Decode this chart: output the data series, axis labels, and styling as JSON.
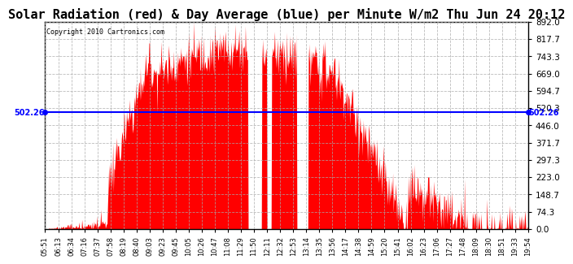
{
  "title": "Solar Radiation (red) & Day Average (blue) per Minute W/m2 Thu Jun 24 20:12",
  "copyright": "Copyright 2010 Cartronics.com",
  "avg_value": 502.26,
  "y_max": 892.0,
  "y_min": 0.0,
  "y_ticks": [
    0.0,
    74.3,
    148.7,
    223.0,
    297.3,
    371.7,
    446.0,
    520.3,
    594.7,
    669.0,
    743.3,
    817.7,
    892.0
  ],
  "x_tick_labels": [
    "05:51",
    "06:13",
    "06:34",
    "07:16",
    "07:37",
    "07:58",
    "08:19",
    "08:40",
    "09:03",
    "09:23",
    "09:45",
    "10:05",
    "10:26",
    "10:47",
    "11:08",
    "11:29",
    "11:50",
    "12:11",
    "12:32",
    "12:53",
    "13:14",
    "13:35",
    "13:56",
    "14:17",
    "14:38",
    "14:59",
    "15:20",
    "15:41",
    "16:02",
    "16:23",
    "17:06",
    "17:27",
    "17:48",
    "18:09",
    "18:30",
    "18:51",
    "19:33",
    "19:54"
  ],
  "bar_color": "#FF0000",
  "line_color": "#0000FF",
  "grid_color": "#AAAAAA",
  "bg_color": "#FFFFFF",
  "title_fontsize": 11,
  "avg_label": "502.26",
  "n_minutes": 843
}
